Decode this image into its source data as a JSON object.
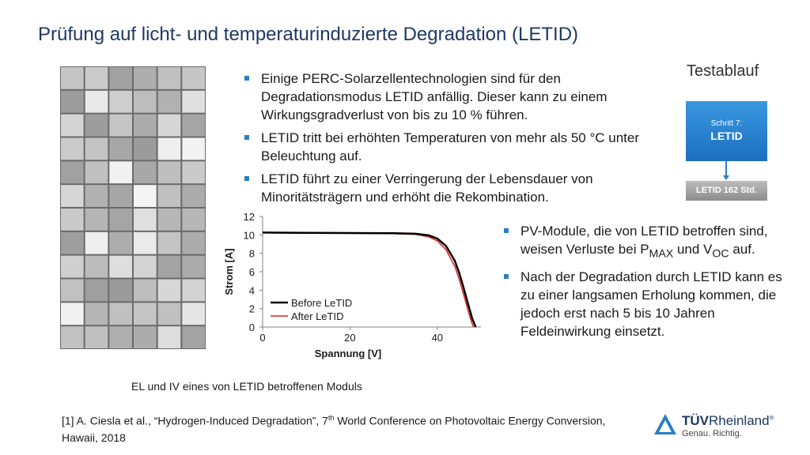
{
  "slide": {
    "title": "Prüfung auf licht- und temperaturinduzierte Degradation (LETID)"
  },
  "bullets_top": [
    "Einige PERC-Solarzellentechnologien sind für den Degradationsmodus LETID anfällig. Dieser kann zu einem Wirkungsgradverlust von bis zu 10 % führen.",
    "LETID tritt bei erhöhten Temperaturen von mehr als 50 °C unter Beleuchtung auf.",
    "LETID führt zu einer Verringerung der Lebensdauer von Minoritätsträgern und erhöht die Rekombination."
  ],
  "bullets_right": {
    "b1_pre": "PV-Module, die von LETID betroffen sind, weisen Verluste bei P",
    "b1_sub1": "MAX",
    "b1_mid": " und V",
    "b1_sub2": "OC",
    "b1_post": " auf.",
    "b2": "Nach der Degradation durch LETID kann es zu einer langsamen Erholung kommen, die jedoch erst nach 5 bis 10 Jahren Feldeinwirkung einsetzt."
  },
  "caption": "EL und IV eines von LETID betroffenen Moduls",
  "reference": {
    "pre": "[1] A. Ciesla et al., “Hydrogen-Induced Degradation”, 7",
    "sup": "th",
    "post": " World Conference on Photovoltaic Energy Conversion, Hawaii, 2018"
  },
  "test_sequence": {
    "title": "Testablauf",
    "step_label": "Schritt 7:",
    "step_name": "LETID",
    "result": "LETID 162 Std."
  },
  "logo": {
    "brand_bold": "TÜV",
    "brand_light": "Rheinland",
    "registered": "®",
    "slogan": "Genau. Richtig."
  },
  "colors": {
    "title": "#1f3864",
    "bullet": "#2a7fc4",
    "before": "#000000",
    "after": "#e02020"
  },
  "chart_data": {
    "type": "line",
    "xlabel": "Spannung [V]",
    "ylabel": "Strom [A]",
    "xlim": [
      0,
      50
    ],
    "ylim": [
      0,
      12
    ],
    "xticks": [
      0,
      20,
      40
    ],
    "yticks": [
      0,
      2,
      4,
      6,
      8,
      10,
      12
    ],
    "grid": false,
    "legend_position": "bottom-left",
    "series": [
      {
        "name": "Before LeTID",
        "color": "#000000",
        "x": [
          0,
          10,
          20,
          30,
          35,
          38,
          40,
          42,
          44,
          45,
          46,
          47,
          48,
          48.8
        ],
        "y": [
          10.25,
          10.22,
          10.2,
          10.17,
          10.12,
          9.95,
          9.6,
          8.8,
          7.2,
          5.9,
          4.3,
          2.6,
          0.9,
          0
        ]
      },
      {
        "name": "After LeTID",
        "color": "#e02020",
        "x": [
          0,
          10,
          20,
          30,
          35,
          38,
          40,
          42,
          44,
          45,
          46,
          47,
          47.8,
          48.3
        ],
        "y": [
          10.22,
          10.19,
          10.17,
          10.13,
          10.05,
          9.8,
          9.35,
          8.4,
          6.6,
          5.2,
          3.6,
          1.9,
          0.6,
          0
        ]
      }
    ]
  }
}
